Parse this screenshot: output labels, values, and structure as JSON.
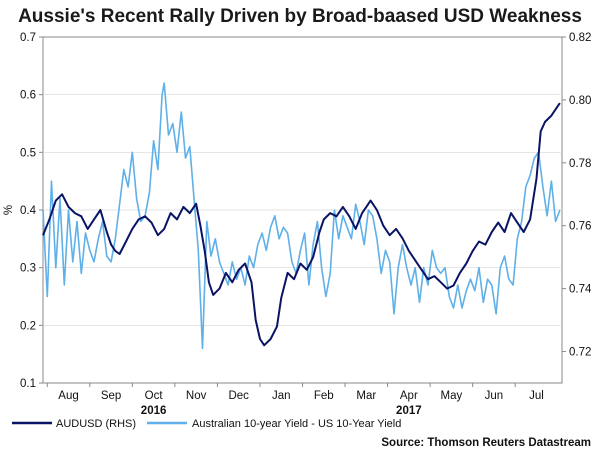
{
  "chart_data": {
    "type": "line",
    "title": "Aussie's Recent Rally Driven by Broad-baased USD Weakness",
    "ylabel_left": "%",
    "ylim_left": [
      0.1,
      0.7
    ],
    "yticks_left": [
      "0.1",
      "0.2",
      "0.3",
      "0.4",
      "0.5",
      "0.6",
      "0.7"
    ],
    "ylim_right": [
      0.71,
      0.82
    ],
    "yticks_right": [
      "0.72",
      "0.74",
      "0.76",
      "0.78",
      "0.80",
      "0.82"
    ],
    "months": [
      "Aug",
      "Sep",
      "Oct",
      "Nov",
      "Dec",
      "Jan",
      "Feb",
      "Mar",
      "Apr",
      "May",
      "Jun",
      "Jul"
    ],
    "years": [
      {
        "label": "2016",
        "month_index": 2
      },
      {
        "label": "2017",
        "month_index": 8
      }
    ],
    "x_range": [
      -0.6,
      11.6
    ],
    "source": "Source: Thomson Reuters Datastream",
    "series": [
      {
        "name": "AUDUSD (RHS)",
        "axis": "right",
        "color": "#0a1464",
        "points": [
          [
            -0.6,
            0.757
          ],
          [
            -0.45,
            0.762
          ],
          [
            -0.3,
            0.768
          ],
          [
            -0.15,
            0.77
          ],
          [
            0.0,
            0.766
          ],
          [
            0.15,
            0.764
          ],
          [
            0.3,
            0.763
          ],
          [
            0.45,
            0.759
          ],
          [
            0.6,
            0.762
          ],
          [
            0.75,
            0.765
          ],
          [
            0.9,
            0.758
          ],
          [
            1.0,
            0.754
          ],
          [
            1.1,
            0.752
          ],
          [
            1.2,
            0.751
          ],
          [
            1.35,
            0.755
          ],
          [
            1.5,
            0.759
          ],
          [
            1.65,
            0.762
          ],
          [
            1.8,
            0.763
          ],
          [
            1.95,
            0.761
          ],
          [
            2.1,
            0.757
          ],
          [
            2.25,
            0.759
          ],
          [
            2.4,
            0.764
          ],
          [
            2.55,
            0.762
          ],
          [
            2.7,
            0.766
          ],
          [
            2.85,
            0.764
          ],
          [
            3.0,
            0.767
          ],
          [
            3.1,
            0.76
          ],
          [
            3.2,
            0.752
          ],
          [
            3.3,
            0.742
          ],
          [
            3.4,
            0.738
          ],
          [
            3.55,
            0.74
          ],
          [
            3.7,
            0.745
          ],
          [
            3.85,
            0.742
          ],
          [
            4.0,
            0.746
          ],
          [
            4.15,
            0.748
          ],
          [
            4.3,
            0.742
          ],
          [
            4.4,
            0.73
          ],
          [
            4.5,
            0.724
          ],
          [
            4.6,
            0.722
          ],
          [
            4.75,
            0.724
          ],
          [
            4.9,
            0.728
          ],
          [
            5.0,
            0.737
          ],
          [
            5.15,
            0.745
          ],
          [
            5.3,
            0.743
          ],
          [
            5.45,
            0.748
          ],
          [
            5.6,
            0.746
          ],
          [
            5.75,
            0.75
          ],
          [
            5.9,
            0.758
          ],
          [
            6.0,
            0.762
          ],
          [
            6.15,
            0.764
          ],
          [
            6.3,
            0.763
          ],
          [
            6.45,
            0.766
          ],
          [
            6.6,
            0.763
          ],
          [
            6.75,
            0.759
          ],
          [
            6.9,
            0.764
          ],
          [
            7.0,
            0.766
          ],
          [
            7.1,
            0.768
          ],
          [
            7.25,
            0.765
          ],
          [
            7.4,
            0.76
          ],
          [
            7.55,
            0.757
          ],
          [
            7.7,
            0.759
          ],
          [
            7.85,
            0.756
          ],
          [
            8.0,
            0.752
          ],
          [
            8.15,
            0.749
          ],
          [
            8.3,
            0.746
          ],
          [
            8.45,
            0.743
          ],
          [
            8.6,
            0.744
          ],
          [
            8.75,
            0.742
          ],
          [
            8.9,
            0.74
          ],
          [
            9.05,
            0.741
          ],
          [
            9.2,
            0.745
          ],
          [
            9.35,
            0.748
          ],
          [
            9.5,
            0.752
          ],
          [
            9.65,
            0.755
          ],
          [
            9.8,
            0.754
          ],
          [
            9.95,
            0.758
          ],
          [
            10.1,
            0.761
          ],
          [
            10.25,
            0.758
          ],
          [
            10.4,
            0.764
          ],
          [
            10.55,
            0.761
          ],
          [
            10.7,
            0.758
          ],
          [
            10.85,
            0.762
          ],
          [
            11.0,
            0.775
          ],
          [
            11.1,
            0.79
          ],
          [
            11.2,
            0.793
          ],
          [
            11.35,
            0.795
          ],
          [
            11.45,
            0.797
          ],
          [
            11.55,
            0.799
          ]
        ]
      },
      {
        "name": "Australian 10-year Yield - US 10-Year Yield",
        "axis": "left",
        "color": "#5fb0e8",
        "points": [
          [
            -0.6,
            0.4
          ],
          [
            -0.5,
            0.25
          ],
          [
            -0.4,
            0.45
          ],
          [
            -0.3,
            0.3
          ],
          [
            -0.2,
            0.42
          ],
          [
            -0.1,
            0.27
          ],
          [
            0.0,
            0.4
          ],
          [
            0.1,
            0.31
          ],
          [
            0.2,
            0.38
          ],
          [
            0.3,
            0.29
          ],
          [
            0.4,
            0.36
          ],
          [
            0.5,
            0.33
          ],
          [
            0.6,
            0.31
          ],
          [
            0.7,
            0.35
          ],
          [
            0.8,
            0.38
          ],
          [
            0.9,
            0.32
          ],
          [
            1.0,
            0.31
          ],
          [
            1.1,
            0.35
          ],
          [
            1.2,
            0.41
          ],
          [
            1.3,
            0.47
          ],
          [
            1.4,
            0.44
          ],
          [
            1.5,
            0.5
          ],
          [
            1.6,
            0.42
          ],
          [
            1.7,
            0.38
          ],
          [
            1.8,
            0.39
          ],
          [
            1.9,
            0.43
          ],
          [
            2.0,
            0.52
          ],
          [
            2.1,
            0.47
          ],
          [
            2.2,
            0.6
          ],
          [
            2.25,
            0.62
          ],
          [
            2.35,
            0.53
          ],
          [
            2.45,
            0.55
          ],
          [
            2.55,
            0.5
          ],
          [
            2.65,
            0.57
          ],
          [
            2.75,
            0.49
          ],
          [
            2.85,
            0.51
          ],
          [
            2.95,
            0.42
          ],
          [
            3.05,
            0.33
          ],
          [
            3.15,
            0.16
          ],
          [
            3.25,
            0.38
          ],
          [
            3.35,
            0.32
          ],
          [
            3.45,
            0.35
          ],
          [
            3.55,
            0.31
          ],
          [
            3.65,
            0.29
          ],
          [
            3.75,
            0.27
          ],
          [
            3.85,
            0.31
          ],
          [
            3.95,
            0.28
          ],
          [
            4.05,
            0.3
          ],
          [
            4.15,
            0.27
          ],
          [
            4.25,
            0.32
          ],
          [
            4.35,
            0.3
          ],
          [
            4.45,
            0.34
          ],
          [
            4.55,
            0.36
          ],
          [
            4.65,
            0.33
          ],
          [
            4.75,
            0.37
          ],
          [
            4.85,
            0.39
          ],
          [
            4.95,
            0.35
          ],
          [
            5.05,
            0.37
          ],
          [
            5.15,
            0.36
          ],
          [
            5.25,
            0.31
          ],
          [
            5.35,
            0.29
          ],
          [
            5.45,
            0.33
          ],
          [
            5.55,
            0.36
          ],
          [
            5.65,
            0.27
          ],
          [
            5.75,
            0.34
          ],
          [
            5.85,
            0.38
          ],
          [
            5.95,
            0.3
          ],
          [
            6.05,
            0.25
          ],
          [
            6.15,
            0.29
          ],
          [
            6.25,
            0.4
          ],
          [
            6.35,
            0.35
          ],
          [
            6.45,
            0.39
          ],
          [
            6.55,
            0.37
          ],
          [
            6.65,
            0.35
          ],
          [
            6.75,
            0.41
          ],
          [
            6.85,
            0.38
          ],
          [
            6.95,
            0.34
          ],
          [
            7.05,
            0.4
          ],
          [
            7.15,
            0.39
          ],
          [
            7.25,
            0.35
          ],
          [
            7.35,
            0.29
          ],
          [
            7.45,
            0.33
          ],
          [
            7.55,
            0.31
          ],
          [
            7.65,
            0.22
          ],
          [
            7.75,
            0.3
          ],
          [
            7.85,
            0.34
          ],
          [
            7.95,
            0.3
          ],
          [
            8.05,
            0.27
          ],
          [
            8.15,
            0.3
          ],
          [
            8.25,
            0.24
          ],
          [
            8.35,
            0.3
          ],
          [
            8.45,
            0.27
          ],
          [
            8.55,
            0.33
          ],
          [
            8.65,
            0.3
          ],
          [
            8.75,
            0.29
          ],
          [
            8.85,
            0.3
          ],
          [
            8.95,
            0.25
          ],
          [
            9.05,
            0.23
          ],
          [
            9.15,
            0.27
          ],
          [
            9.25,
            0.23
          ],
          [
            9.35,
            0.26
          ],
          [
            9.45,
            0.28
          ],
          [
            9.55,
            0.26
          ],
          [
            9.65,
            0.3
          ],
          [
            9.75,
            0.24
          ],
          [
            9.85,
            0.28
          ],
          [
            9.95,
            0.27
          ],
          [
            10.05,
            0.22
          ],
          [
            10.15,
            0.3
          ],
          [
            10.25,
            0.32
          ],
          [
            10.35,
            0.28
          ],
          [
            10.45,
            0.27
          ],
          [
            10.55,
            0.35
          ],
          [
            10.65,
            0.38
          ],
          [
            10.75,
            0.44
          ],
          [
            10.85,
            0.46
          ],
          [
            10.95,
            0.49
          ],
          [
            11.05,
            0.5
          ],
          [
            11.15,
            0.44
          ],
          [
            11.25,
            0.39
          ],
          [
            11.35,
            0.45
          ],
          [
            11.45,
            0.38
          ],
          [
            11.55,
            0.4
          ]
        ]
      }
    ]
  }
}
